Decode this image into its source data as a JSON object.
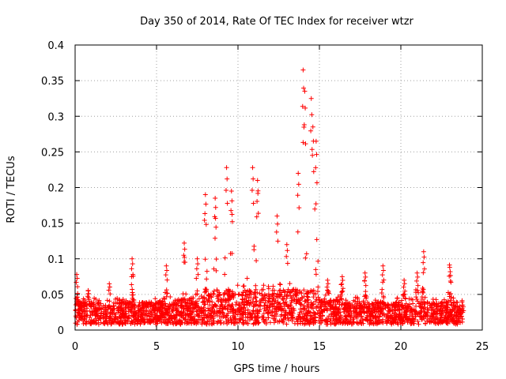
{
  "chart_data": {
    "type": "scatter",
    "title": "Day 350 of 2014, Rate Of TEC Index for receiver wtzr",
    "xlabel": "GPS time / hours",
    "ylabel": "ROTI / TECUs",
    "xlim": [
      0,
      25
    ],
    "ylim": [
      0,
      0.4
    ],
    "xticks": [
      0,
      5,
      10,
      15,
      20,
      25
    ],
    "xtick_labels": [
      "0",
      "5",
      "10",
      "15",
      "20",
      "25"
    ],
    "yticks": [
      0,
      0.05,
      0.1,
      0.15,
      0.2,
      0.25,
      0.3,
      0.35,
      0.4
    ],
    "ytick_labels": [
      "0",
      "0.05",
      "0.1",
      "0.15",
      "0.2",
      "0.25",
      "0.3",
      "0.35",
      "0.4"
    ],
    "grid": true,
    "marker": "plus",
    "series": [
      {
        "name": "ROTI",
        "color": "#ff0000",
        "notes": "dense point cloud sampled every few minutes; baseline ~0.01-0.05 TECU with peaks listed",
        "peaks": [
          {
            "x": 0.1,
            "y": 0.078
          },
          {
            "x": 0.8,
            "y": 0.055
          },
          {
            "x": 2.1,
            "y": 0.065
          },
          {
            "x": 3.5,
            "y": 0.1
          },
          {
            "x": 5.6,
            "y": 0.09
          },
          {
            "x": 6.7,
            "y": 0.122
          },
          {
            "x": 7.5,
            "y": 0.1
          },
          {
            "x": 8.0,
            "y": 0.19
          },
          {
            "x": 8.6,
            "y": 0.185
          },
          {
            "x": 9.3,
            "y": 0.228
          },
          {
            "x": 9.6,
            "y": 0.195
          },
          {
            "x": 10.9,
            "y": 0.228
          },
          {
            "x": 11.2,
            "y": 0.21
          },
          {
            "x": 12.4,
            "y": 0.16
          },
          {
            "x": 13.0,
            "y": 0.12
          },
          {
            "x": 13.7,
            "y": 0.22
          },
          {
            "x": 14.0,
            "y": 0.365
          },
          {
            "x": 14.1,
            "y": 0.335
          },
          {
            "x": 14.5,
            "y": 0.325
          },
          {
            "x": 14.6,
            "y": 0.285
          },
          {
            "x": 14.8,
            "y": 0.265
          },
          {
            "x": 15.5,
            "y": 0.07
          },
          {
            "x": 16.4,
            "y": 0.075
          },
          {
            "x": 17.8,
            "y": 0.08
          },
          {
            "x": 18.9,
            "y": 0.09
          },
          {
            "x": 20.2,
            "y": 0.07
          },
          {
            "x": 21.0,
            "y": 0.08
          },
          {
            "x": 21.4,
            "y": 0.11
          },
          {
            "x": 23.0,
            "y": 0.088
          },
          {
            "x": 23.8,
            "y": 0.035
          }
        ]
      }
    ]
  }
}
